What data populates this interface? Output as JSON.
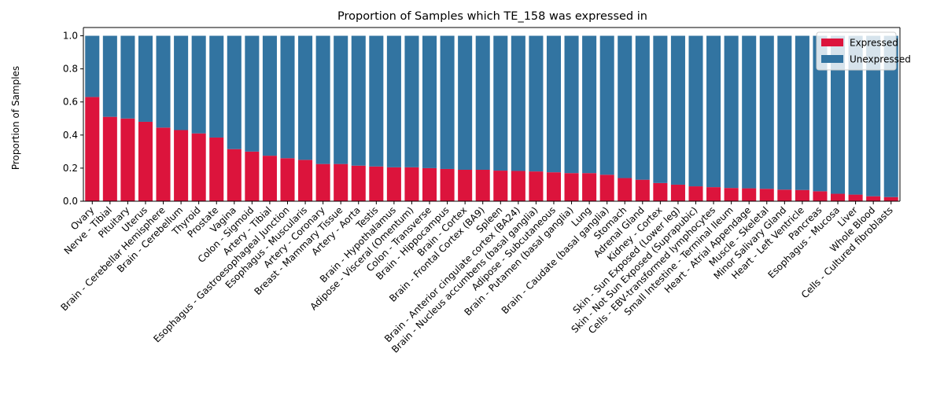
{
  "chart_data": {
    "type": "bar",
    "stacked": true,
    "title": "Proportion of Samples which TE_158 was expressed in",
    "xlabel": "",
    "ylabel": "Proportion of Samples",
    "ylim": [
      0,
      1.05
    ],
    "yticks": [
      "0.0",
      "0.2",
      "0.4",
      "0.6",
      "0.8",
      "1.0"
    ],
    "legend_position": "top-right",
    "categories": [
      "Ovary",
      "Nerve - Tibial",
      "Pituitary",
      "Uterus",
      "Brain - Cerebellar Hemisphere",
      "Brain - Cerebellum",
      "Thyroid",
      "Prostate",
      "Vagina",
      "Colon - Sigmoid",
      "Artery - Tibial",
      "Esophagus - Gastroesophageal Junction",
      "Esophagus - Muscularis",
      "Artery - Coronary",
      "Breast - Mammary Tissue",
      "Artery - Aorta",
      "Testis",
      "Brain - Hypothalamus",
      "Adipose - Visceral (Omentum)",
      "Colon - Transverse",
      "Brain - Hippocampus",
      "Brain - Cortex",
      "Brain - Frontal Cortex (BA9)",
      "Spleen",
      "Brain - Anterior cingulate cortex (BA24)",
      "Brain - Nucleus accumbens (basal ganglia)",
      "Adipose - Subcutaneous",
      "Brain - Putamen (basal ganglia)",
      "Lung",
      "Brain - Caudate (basal ganglia)",
      "Stomach",
      "Adrenal Gland",
      "Kidney - Cortex",
      "Skin - Sun Exposed (Lower leg)",
      "Skin - Not Sun Exposed (Suprapubic)",
      "Cells - EBV-transformed lymphocytes",
      "Small Intestine - Terminal Ileum",
      "Heart - Atrial Appendage",
      "Muscle - Skeletal",
      "Minor Salivary Gland",
      "Heart - Left Ventricle",
      "Pancreas",
      "Esophagus - Mucosa",
      "Liver",
      "Whole Blood",
      "Cells - Cultured fibroblasts"
    ],
    "series": [
      {
        "name": "Expressed",
        "color": "#dc143c",
        "values": [
          0.63,
          0.51,
          0.5,
          0.48,
          0.445,
          0.43,
          0.41,
          0.385,
          0.315,
          0.3,
          0.275,
          0.26,
          0.25,
          0.225,
          0.225,
          0.215,
          0.21,
          0.205,
          0.205,
          0.2,
          0.195,
          0.19,
          0.19,
          0.185,
          0.183,
          0.18,
          0.175,
          0.17,
          0.17,
          0.16,
          0.14,
          0.13,
          0.11,
          0.1,
          0.09,
          0.085,
          0.08,
          0.078,
          0.075,
          0.07,
          0.068,
          0.06,
          0.045,
          0.04,
          0.03,
          0.025
        ]
      },
      {
        "name": "Unexpressed",
        "color": "#3274a1",
        "values": [
          0.37,
          0.49,
          0.5,
          0.52,
          0.555,
          0.57,
          0.59,
          0.615,
          0.685,
          0.7,
          0.725,
          0.74,
          0.75,
          0.775,
          0.775,
          0.785,
          0.79,
          0.795,
          0.795,
          0.8,
          0.805,
          0.81,
          0.81,
          0.815,
          0.817,
          0.82,
          0.825,
          0.83,
          0.83,
          0.84,
          0.86,
          0.87,
          0.89,
          0.9,
          0.91,
          0.915,
          0.92,
          0.922,
          0.925,
          0.93,
          0.932,
          0.94,
          0.955,
          0.96,
          0.97,
          0.975
        ]
      }
    ]
  }
}
